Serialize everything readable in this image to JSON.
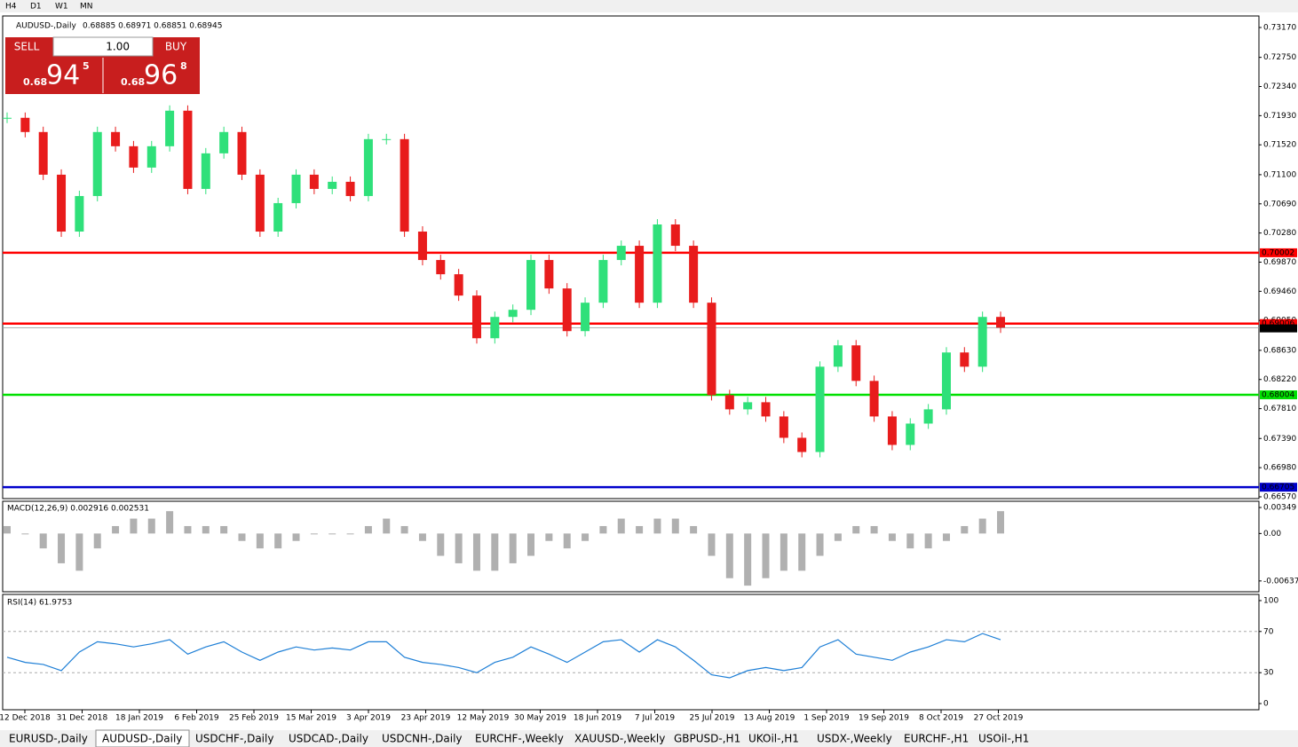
{
  "toolbar": {
    "timeframes": [
      "H4",
      "D1",
      "W1",
      "MN"
    ]
  },
  "header": {
    "symbol": "AUDUSD-,Daily",
    "quote": "0.68885 0.68971 0.68851 0.68945"
  },
  "trade_panel": {
    "sell": "SELL",
    "buy": "BUY",
    "lots": "1.00",
    "sell_big": "0.68",
    "sell_main": "94",
    "sell_sup": "5",
    "buy_big": "0.68",
    "buy_main": "96",
    "buy_sup": "8"
  },
  "chart_data": [
    {
      "type": "candlestick",
      "name": "price",
      "closes": [
        0.719,
        0.717,
        0.711,
        0.703,
        0.708,
        0.717,
        0.715,
        0.712,
        0.715,
        0.72,
        0.709,
        0.714,
        0.717,
        0.711,
        0.703,
        0.707,
        0.711,
        0.709,
        0.71,
        0.708,
        0.716,
        0.716,
        0.703,
        0.699,
        0.697,
        0.694,
        0.688,
        0.691,
        0.692,
        0.699,
        0.695,
        0.689,
        0.693,
        0.699,
        0.701,
        0.693,
        0.704,
        0.701,
        0.693,
        0.68,
        0.678,
        0.679,
        0.677,
        0.674,
        0.672,
        0.684,
        0.687,
        0.682,
        0.677,
        0.673,
        0.676,
        0.678,
        0.686,
        0.684,
        0.691,
        0.6895
      ],
      "up_color": "#2fe07a",
      "down_color": "#e81c1c",
      "ylim": [
        0.66545,
        0.73332
      ],
      "yticks": [
        {
          "value": 0.7317,
          "label": "0.73170"
        },
        {
          "value": 0.7275,
          "label": "0.72750"
        },
        {
          "value": 0.7234,
          "label": "0.72340"
        },
        {
          "value": 0.7193,
          "label": "0.71930"
        },
        {
          "value": 0.7152,
          "label": "0.71520"
        },
        {
          "value": 0.711,
          "label": "0.71100"
        },
        {
          "value": 0.7069,
          "label": "0.70690"
        },
        {
          "value": 0.7028,
          "label": "0.70280"
        },
        {
          "value": 0.6987,
          "label": "0.69870"
        },
        {
          "value": 0.6946,
          "label": "0.69460"
        },
        {
          "value": 0.6905,
          "label": "0.69050"
        },
        {
          "value": 0.6863,
          "label": "0.68630"
        },
        {
          "value": 0.6822,
          "label": "0.68220"
        },
        {
          "value": 0.6781,
          "label": "0.67810"
        },
        {
          "value": 0.6739,
          "label": "0.67390"
        },
        {
          "value": 0.6698,
          "label": "0.66980"
        },
        {
          "value": 0.6657,
          "label": "0.66570"
        }
      ],
      "levels": [
        {
          "value": 0.70002,
          "color": "#ff0000"
        },
        {
          "value": 0.69006,
          "color": "#ff0000"
        },
        {
          "value": 0.68004,
          "color": "#00e000"
        },
        {
          "value": 0.66705,
          "color": "#0000cc"
        }
      ],
      "current": 0.68945,
      "x_labels": [
        "12 Dec 2018",
        "31 Dec 2018",
        "18 Jan 2019",
        "6 Feb 2019",
        "25 Feb 2019",
        "15 Mar 2019",
        "3 Apr 2019",
        "23 Apr 2019",
        "12 May 2019",
        "30 May 2019",
        "18 Jun 2019",
        "7 Jul 2019",
        "25 Jul 2019",
        "13 Aug 2019",
        "1 Sep 2019",
        "19 Sep 2019",
        "8 Oct 2019",
        "27 Oct 2019"
      ]
    },
    {
      "type": "histogram",
      "name": "macd",
      "title": "MACD(12,26,9) 0.002916 0.002531",
      "color": "#b0b0b0",
      "values": [
        0.001,
        0.0,
        -0.002,
        -0.004,
        -0.005,
        -0.002,
        0.001,
        0.002,
        0.002,
        0.003,
        0.001,
        0.001,
        0.001,
        -0.001,
        -0.002,
        -0.002,
        -0.001,
        0.0,
        0.0,
        0.0,
        0.001,
        0.002,
        0.001,
        -0.001,
        -0.003,
        -0.004,
        -0.005,
        -0.005,
        -0.004,
        -0.003,
        -0.001,
        -0.002,
        -0.001,
        0.001,
        0.002,
        0.001,
        0.002,
        0.002,
        0.001,
        -0.003,
        -0.006,
        -0.007,
        -0.006,
        -0.005,
        -0.005,
        -0.003,
        -0.001,
        0.001,
        0.001,
        -0.001,
        -0.002,
        -0.002,
        -0.001,
        0.001,
        0.002,
        0.003
      ],
      "ylim": [
        -0.00782,
        0.00433
      ],
      "yticks": [
        0.00349,
        {
          "value": 0,
          "label": "0.00"
        },
        -0.00637
      ]
    },
    {
      "type": "line",
      "name": "rsi",
      "title": "RSI(14) 61.9753",
      "color": "#1e7fd6",
      "values": [
        45,
        40,
        38,
        32,
        50,
        60,
        58,
        55,
        58,
        62,
        48,
        55,
        60,
        50,
        42,
        50,
        55,
        52,
        54,
        52,
        60,
        60,
        45,
        40,
        38,
        35,
        30,
        40,
        45,
        55,
        48,
        40,
        50,
        60,
        62,
        50,
        62,
        55,
        42,
        28,
        25,
        32,
        35,
        32,
        35,
        55,
        62,
        48,
        45,
        42,
        50,
        55,
        62,
        60,
        68,
        62
      ],
      "ylim": [
        -6,
        106
      ],
      "yticks": [
        100,
        70,
        30,
        0
      ]
    }
  ],
  "tabs": [
    "EURUSD-,Daily",
    "AUDUSD-,Daily",
    "USDCHF-,Daily",
    "USDCAD-,Daily",
    "USDCNH-,Daily",
    "EURCHF-,Weekly",
    "XAUUSD-,Weekly",
    "GBPUSD-,H1",
    "UKOil-,H1",
    "USDX-,Weekly",
    "EURCHF-,H1",
    "USOil-,H1"
  ]
}
